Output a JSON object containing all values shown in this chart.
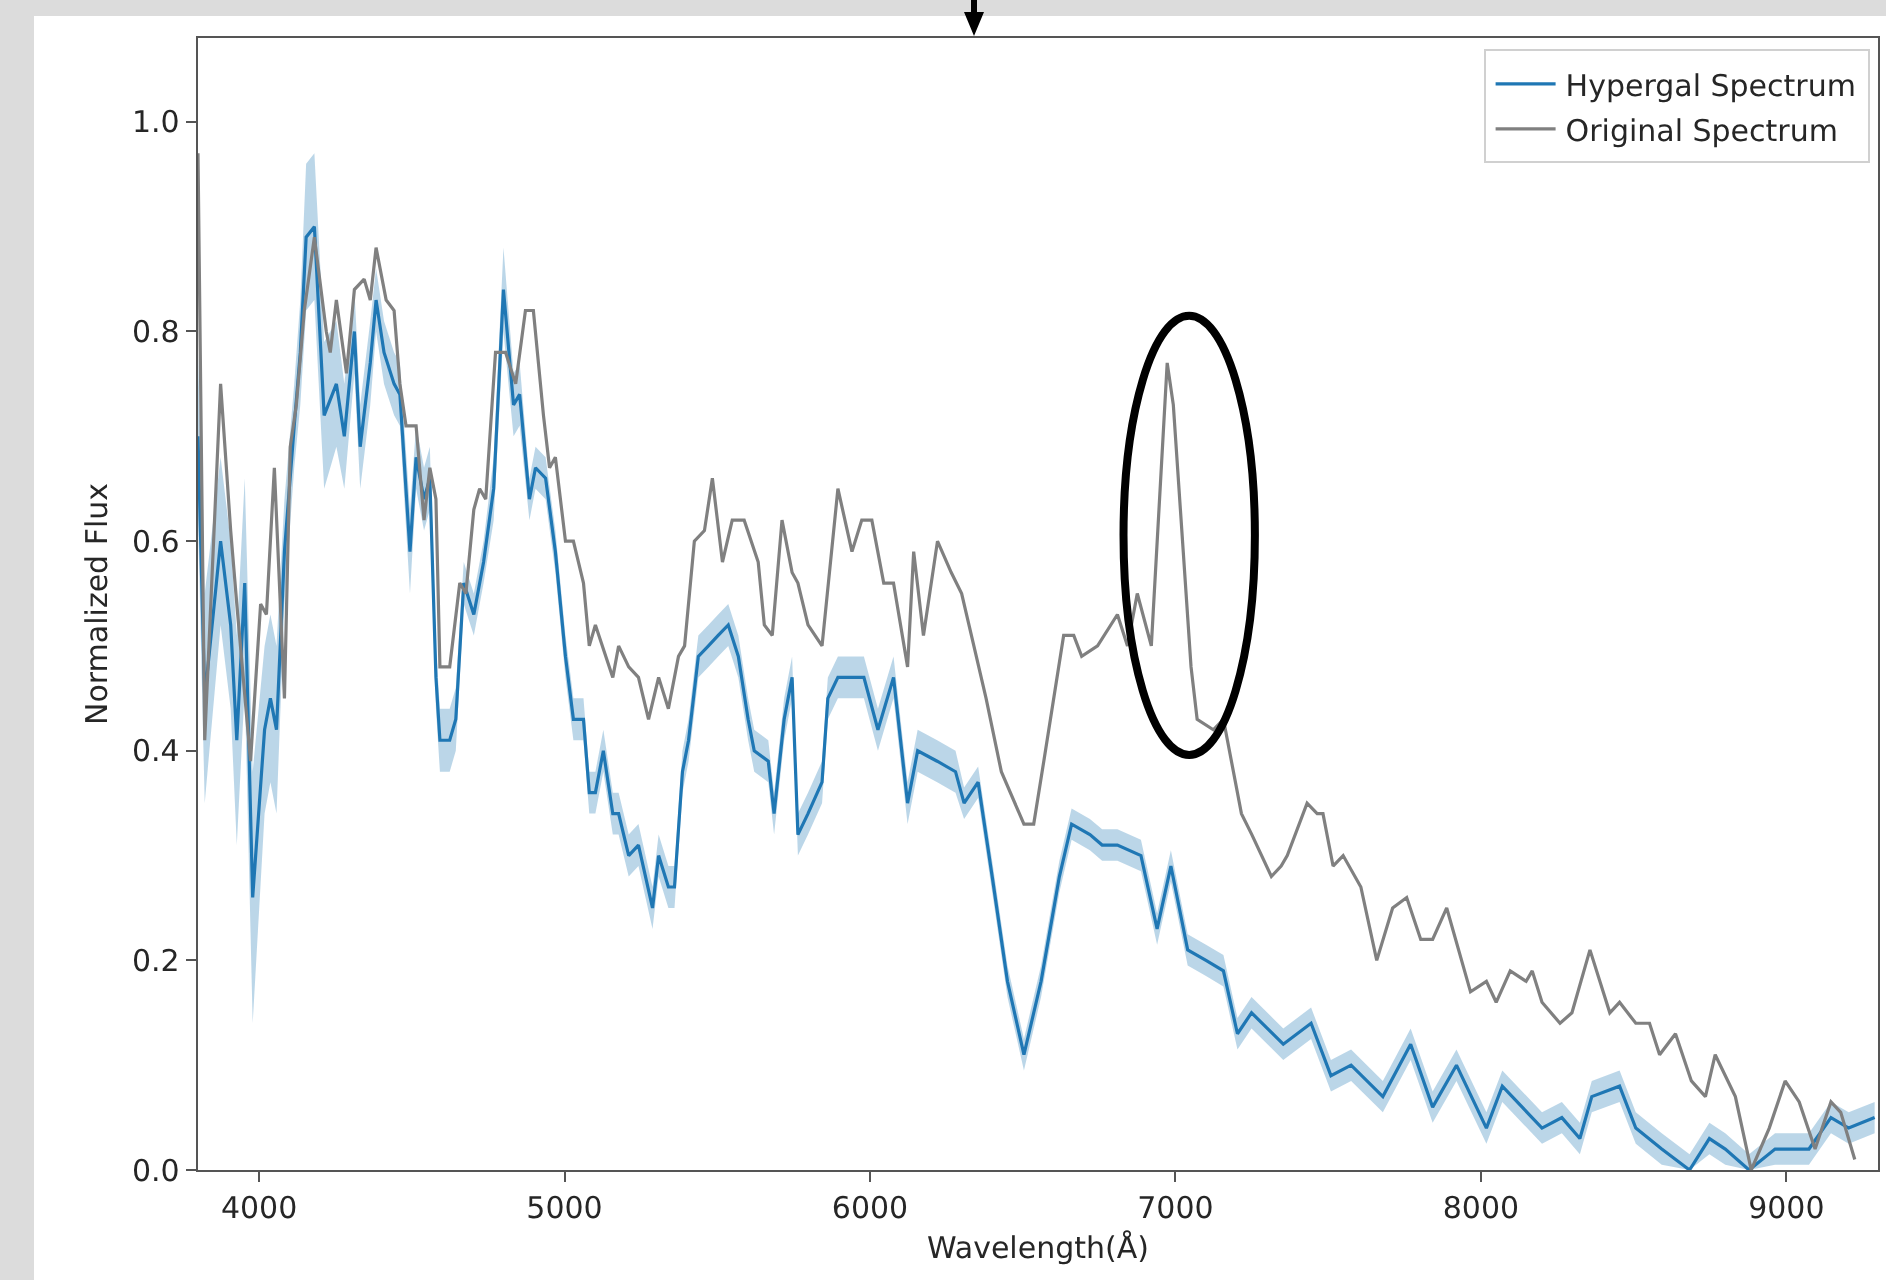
{
  "chart_data": {
    "type": "line",
    "xlabel": "Wavelength(Å)",
    "ylabel": "Normalized Flux",
    "xlim": [
      3800,
      9300
    ],
    "xticks": [
      4000,
      5000,
      6000,
      7000,
      8000,
      9000
    ],
    "ylim": [
      0,
      1.08
    ],
    "yticks": [
      {
        "value": 0,
        "label": "0.0"
      },
      {
        "value": 0.2,
        "label": "0.2"
      },
      {
        "value": 0.4,
        "label": "0.4"
      },
      {
        "value": 0.6,
        "label": "0.6"
      },
      {
        "value": 0.8,
        "label": "0.8"
      },
      {
        "value": 1,
        "label": "1.0"
      }
    ],
    "grid": false,
    "legend": "top right",
    "line_style": "solid",
    "marker": "none",
    "series": [
      {
        "name": "Hypergal Spectrum",
        "color": "#1f77b4",
        "x": [
          3800,
          3822,
          3874,
          3907,
          3927,
          3953,
          3979,
          4018,
          4037,
          4057,
          4083,
          4115,
          4135,
          4154,
          4181,
          4213,
          4253,
          4279,
          4312,
          4331,
          4364,
          4383,
          4409,
          4442,
          4461,
          4494,
          4514,
          4540,
          4559,
          4579,
          4592,
          4624,
          4644,
          4670,
          4703,
          4735,
          4768,
          4800,
          4833,
          4853,
          4885,
          4905,
          4938,
          4970,
          5003,
          5029,
          5062,
          5081,
          5101,
          5127,
          5158,
          5177,
          5210,
          5242,
          5288,
          5308,
          5340,
          5360,
          5386,
          5406,
          5438,
          5471,
          5503,
          5536,
          5569,
          5601,
          5621,
          5667,
          5686,
          5719,
          5745,
          5764,
          5797,
          5843,
          5862,
          5895,
          5941,
          5980,
          6026,
          6077,
          6123,
          6156,
          6220,
          6280,
          6308,
          6354,
          6400,
          6450,
          6504,
          6560,
          6620,
          6660,
          6720,
          6760,
          6810,
          6887,
          6940,
          6985,
          7040,
          7100,
          7157,
          7203,
          7249,
          7353,
          7444,
          7509,
          7575,
          7679,
          7770,
          7842,
          7920,
          8018,
          8070,
          8200,
          8265,
          8324,
          8363,
          8454,
          8507,
          8592,
          8683,
          8748,
          8800,
          8878,
          8963,
          9074,
          9146,
          9204,
          9289
        ],
        "values": [
          0.7,
          0.45,
          0.6,
          0.52,
          0.41,
          0.56,
          0.26,
          0.42,
          0.45,
          0.42,
          0.59,
          0.71,
          0.78,
          0.89,
          0.9,
          0.72,
          0.75,
          0.7,
          0.8,
          0.69,
          0.77,
          0.83,
          0.78,
          0.75,
          0.74,
          0.59,
          0.68,
          0.64,
          0.66,
          0.47,
          0.41,
          0.41,
          0.43,
          0.56,
          0.53,
          0.58,
          0.65,
          0.84,
          0.73,
          0.74,
          0.64,
          0.67,
          0.66,
          0.59,
          0.49,
          0.43,
          0.43,
          0.36,
          0.36,
          0.4,
          0.34,
          0.34,
          0.3,
          0.31,
          0.25,
          0.3,
          0.27,
          0.27,
          0.38,
          0.41,
          0.49,
          0.5,
          0.51,
          0.52,
          0.49,
          0.43,
          0.4,
          0.39,
          0.34,
          0.43,
          0.47,
          0.32,
          0.34,
          0.37,
          0.45,
          0.47,
          0.47,
          0.47,
          0.42,
          0.47,
          0.35,
          0.4,
          0.39,
          0.38,
          0.35,
          0.37,
          0.28,
          0.18,
          0.11,
          0.18,
          0.28,
          0.33,
          0.32,
          0.31,
          0.31,
          0.3,
          0.23,
          0.29,
          0.21,
          0.2,
          0.19,
          0.13,
          0.15,
          0.12,
          0.14,
          0.09,
          0.1,
          0.07,
          0.12,
          0.06,
          0.1,
          0.04,
          0.08,
          0.04,
          0.05,
          0.03,
          0.07,
          0.08,
          0.04,
          0.02,
          0.0,
          0.03,
          0.02,
          0.0,
          0.02,
          0.02,
          0.05,
          0.04,
          0.05
        ],
        "lower": [
          0.62,
          0.35,
          0.52,
          0.44,
          0.31,
          0.46,
          0.14,
          0.34,
          0.37,
          0.34,
          0.54,
          0.67,
          0.73,
          0.82,
          0.83,
          0.65,
          0.69,
          0.65,
          0.76,
          0.65,
          0.73,
          0.8,
          0.75,
          0.72,
          0.71,
          0.55,
          0.65,
          0.61,
          0.63,
          0.44,
          0.38,
          0.38,
          0.4,
          0.54,
          0.51,
          0.56,
          0.62,
          0.8,
          0.7,
          0.71,
          0.62,
          0.65,
          0.64,
          0.57,
          0.47,
          0.41,
          0.41,
          0.34,
          0.34,
          0.38,
          0.32,
          0.32,
          0.28,
          0.29,
          0.23,
          0.28,
          0.25,
          0.25,
          0.36,
          0.39,
          0.47,
          0.48,
          0.49,
          0.5,
          0.47,
          0.41,
          0.38,
          0.37,
          0.32,
          0.41,
          0.45,
          0.3,
          0.32,
          0.35,
          0.43,
          0.45,
          0.45,
          0.45,
          0.4,
          0.45,
          0.33,
          0.38,
          0.37,
          0.36,
          0.335,
          0.355,
          0.265,
          0.165,
          0.095,
          0.165,
          0.265,
          0.315,
          0.305,
          0.295,
          0.295,
          0.285,
          0.215,
          0.275,
          0.195,
          0.185,
          0.175,
          0.115,
          0.135,
          0.105,
          0.125,
          0.075,
          0.085,
          0.055,
          0.105,
          0.045,
          0.085,
          0.025,
          0.065,
          0.025,
          0.035,
          0.015,
          0.055,
          0.065,
          0.025,
          0.005,
          0,
          0.015,
          0.005,
          0,
          0.005,
          0.005,
          0.035,
          0.025,
          0.035
        ],
        "upper": [
          0.78,
          0.55,
          0.68,
          0.6,
          0.51,
          0.66,
          0.38,
          0.5,
          0.53,
          0.5,
          0.64,
          0.75,
          0.83,
          0.96,
          0.97,
          0.79,
          0.81,
          0.75,
          0.84,
          0.73,
          0.81,
          0.86,
          0.81,
          0.78,
          0.77,
          0.63,
          0.71,
          0.67,
          0.69,
          0.5,
          0.44,
          0.44,
          0.46,
          0.58,
          0.55,
          0.6,
          0.68,
          0.88,
          0.76,
          0.77,
          0.66,
          0.69,
          0.68,
          0.61,
          0.51,
          0.45,
          0.45,
          0.38,
          0.38,
          0.42,
          0.36,
          0.36,
          0.32,
          0.33,
          0.27,
          0.32,
          0.29,
          0.29,
          0.4,
          0.43,
          0.51,
          0.52,
          0.53,
          0.54,
          0.51,
          0.45,
          0.42,
          0.41,
          0.36,
          0.45,
          0.49,
          0.34,
          0.36,
          0.39,
          0.47,
          0.49,
          0.49,
          0.49,
          0.44,
          0.49,
          0.37,
          0.42,
          0.41,
          0.4,
          0.365,
          0.385,
          0.295,
          0.195,
          0.125,
          0.195,
          0.295,
          0.345,
          0.335,
          0.325,
          0.325,
          0.315,
          0.245,
          0.305,
          0.225,
          0.215,
          0.205,
          0.145,
          0.165,
          0.135,
          0.155,
          0.105,
          0.115,
          0.085,
          0.135,
          0.075,
          0.115,
          0.055,
          0.095,
          0.055,
          0.065,
          0.045,
          0.085,
          0.095,
          0.055,
          0.035,
          0.015,
          0.045,
          0.035,
          0.015,
          0.035,
          0.035,
          0.065,
          0.055,
          0.065
        ]
      },
      {
        "name": "Original Spectrum",
        "color": "#808080",
        "x": [
          3800,
          3822,
          3874,
          3907,
          3927,
          3972,
          4005,
          4024,
          4050,
          4083,
          4102,
          4122,
          4148,
          4181,
          4220,
          4233,
          4253,
          4286,
          4312,
          4344,
          4364,
          4383,
          4416,
          4442,
          4461,
          4481,
          4514,
          4540,
          4559,
          4579,
          4592,
          4624,
          4657,
          4677,
          4703,
          4722,
          4742,
          4774,
          4807,
          4840,
          4872,
          4898,
          4931,
          4951,
          4970,
          5003,
          5029,
          5062,
          5081,
          5101,
          5158,
          5177,
          5210,
          5242,
          5275,
          5308,
          5340,
          5373,
          5393,
          5425,
          5458,
          5484,
          5517,
          5549,
          5588,
          5634,
          5654,
          5680,
          5712,
          5745,
          5764,
          5797,
          5843,
          5895,
          5941,
          5973,
          6006,
          6045,
          6077,
          6123,
          6143,
          6175,
          6221,
          6266,
          6300,
          6340,
          6380,
          6430,
          6504,
          6536,
          6569,
          6634,
          6667,
          6693,
          6745,
          6810,
          6843,
          6875,
          6921,
          6973,
          6993,
          7051,
          7071,
          7124,
          7157,
          7216,
          7250,
          7314,
          7346,
          7366,
          7431,
          7464,
          7483,
          7516,
          7549,
          7607,
          7659,
          7711,
          7757,
          7803,
          7842,
          7888,
          7966,
          8018,
          8050,
          8096,
          8148,
          8168,
          8200,
          8259,
          8298,
          8357,
          8422,
          8454,
          8507,
          8552,
          8585,
          8637,
          8689,
          8735,
          8767,
          8833,
          8885,
          8944,
          8996,
          9042,
          9094,
          9146,
          9178,
          9224
        ],
        "values": [
          0.97,
          0.41,
          0.75,
          0.61,
          0.54,
          0.39,
          0.54,
          0.53,
          0.67,
          0.45,
          0.69,
          0.73,
          0.82,
          0.89,
          0.8,
          0.78,
          0.83,
          0.76,
          0.84,
          0.85,
          0.83,
          0.88,
          0.83,
          0.82,
          0.75,
          0.71,
          0.71,
          0.62,
          0.67,
          0.64,
          0.48,
          0.48,
          0.56,
          0.55,
          0.63,
          0.65,
          0.64,
          0.78,
          0.78,
          0.75,
          0.82,
          0.82,
          0.72,
          0.67,
          0.68,
          0.6,
          0.6,
          0.56,
          0.5,
          0.52,
          0.47,
          0.5,
          0.48,
          0.47,
          0.43,
          0.47,
          0.44,
          0.49,
          0.5,
          0.6,
          0.61,
          0.66,
          0.58,
          0.62,
          0.62,
          0.58,
          0.52,
          0.51,
          0.62,
          0.57,
          0.56,
          0.52,
          0.5,
          0.65,
          0.59,
          0.62,
          0.62,
          0.56,
          0.56,
          0.48,
          0.59,
          0.51,
          0.6,
          0.57,
          0.55,
          0.5,
          0.45,
          0.38,
          0.33,
          0.33,
          0.39,
          0.51,
          0.51,
          0.49,
          0.5,
          0.53,
          0.5,
          0.55,
          0.5,
          0.77,
          0.73,
          0.48,
          0.43,
          0.42,
          0.43,
          0.34,
          0.32,
          0.28,
          0.29,
          0.3,
          0.35,
          0.34,
          0.34,
          0.29,
          0.3,
          0.27,
          0.2,
          0.25,
          0.26,
          0.22,
          0.22,
          0.25,
          0.17,
          0.18,
          0.16,
          0.19,
          0.18,
          0.19,
          0.16,
          0.14,
          0.15,
          0.21,
          0.15,
          0.16,
          0.14,
          0.14,
          0.11,
          0.13,
          0.085,
          0.07,
          0.11,
          0.07,
          0.0,
          0.04,
          0.085,
          0.065,
          0.02,
          0.065,
          0.055,
          0.01
        ]
      }
    ]
  }
}
